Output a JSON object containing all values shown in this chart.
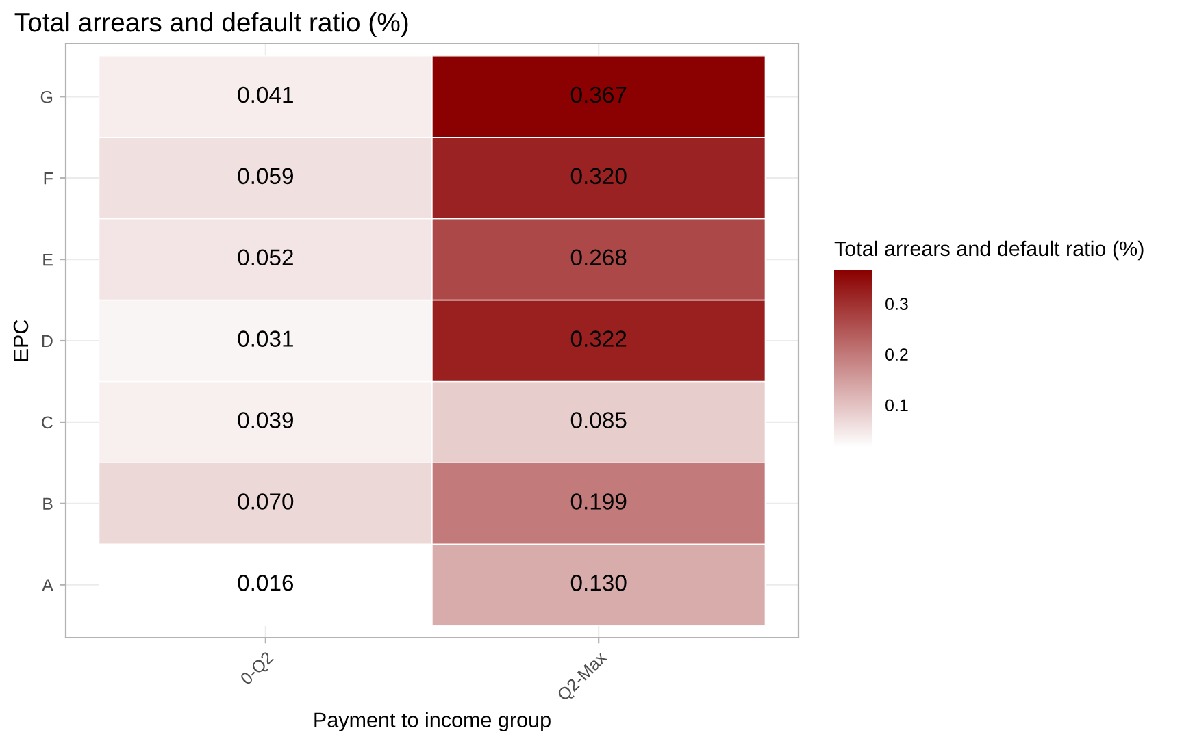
{
  "chart_data": {
    "type": "heatmap",
    "title": "Total arrears and default ratio (%)",
    "xlabel": "Payment to income group",
    "ylabel": "EPC",
    "clabel": "Total arrears and default ratio (%)",
    "categories": [
      "0-Q2",
      "Q2-Max"
    ],
    "y_categories": [
      "G",
      "F",
      "E",
      "D",
      "C",
      "B",
      "A"
    ],
    "cells": [
      [
        0.041,
        0.367
      ],
      [
        0.059,
        0.32
      ],
      [
        0.052,
        0.268
      ],
      [
        0.031,
        0.322
      ],
      [
        0.039,
        0.085
      ],
      [
        0.07,
        0.199
      ],
      [
        0.016,
        0.13
      ]
    ],
    "cell_labels": [
      [
        "0.041",
        "0.367"
      ],
      [
        "0.059",
        "0.320"
      ],
      [
        "0.052",
        "0.268"
      ],
      [
        "0.031",
        "0.322"
      ],
      [
        "0.039",
        "0.085"
      ],
      [
        "0.070",
        "0.199"
      ],
      [
        "0.016",
        "0.130"
      ]
    ],
    "colors": [
      "#ffffff",
      "#8b0000"
    ],
    "clim": [
      0.016,
      0.367
    ],
    "cticks": [
      0.1,
      0.2,
      0.3
    ],
    "grid": true
  }
}
